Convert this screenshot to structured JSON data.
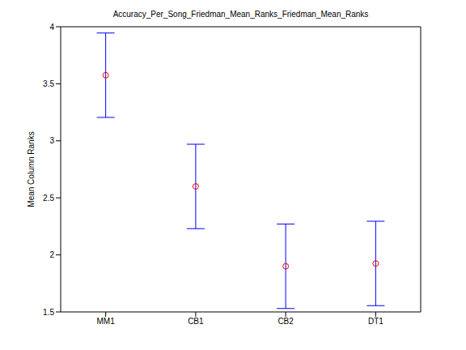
{
  "chart_data": {
    "type": "scatter",
    "title": "Accuracy_Per_Song_Friedman_Mean_Ranks_Friedman_Mean_Ranks",
    "y_label": "Mean Column Ranks",
    "categories": [
      "MM1",
      "CB1",
      "CB2",
      "DT1"
    ],
    "values": [
      3.575,
      2.6,
      1.9,
      1.925
    ],
    "errors": {
      "values": [
        0.37,
        0.37,
        0.37,
        0.37
      ],
      "color": "#0000ff"
    },
    "color": "#ff0000",
    "marker": "circle",
    "ylim": [
      1.5,
      4
    ],
    "yticks": [
      1.5,
      2,
      2.5,
      3,
      3.5,
      4
    ],
    "grid": false
  }
}
